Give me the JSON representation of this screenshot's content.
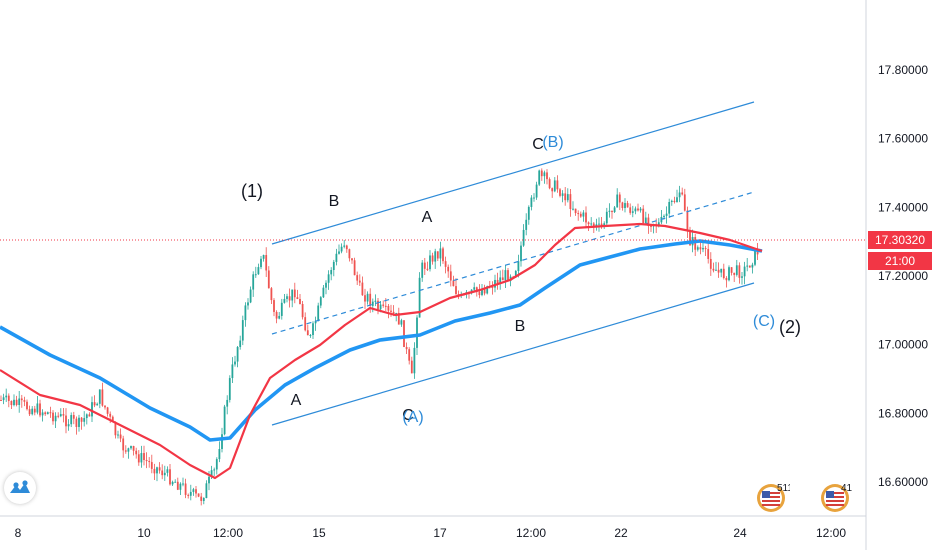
{
  "chart_data": {
    "type": "candlestick",
    "price_axis": {
      "ticks": [
        "17.80000",
        "17.60000",
        "17.40000",
        "17.20000",
        "17.00000",
        "16.80000",
        "16.60000"
      ],
      "tick_values": [
        17.8,
        17.6,
        17.4,
        17.2,
        17.0,
        16.8,
        16.6
      ],
      "ylim": [
        16.5,
        17.98
      ]
    },
    "time_axis": {
      "ticks": [
        "8",
        "10",
        "12:00",
        "15",
        "17",
        "12:00",
        "22",
        "24",
        "12:00"
      ]
    },
    "current_price": {
      "value": 17.3032,
      "label": "17.30320",
      "countdown": "21:00",
      "color": "#f23645"
    },
    "moving_averages": [
      {
        "color": "#f23645",
        "role": "fast"
      },
      {
        "color": "#2196f3",
        "role": "slow"
      }
    ],
    "candle_colors": {
      "up": "#26a69a",
      "down": "#ef5350"
    },
    "candles": [],
    "wave_labels": [
      {
        "text": "(1)",
        "style": "paren"
      },
      {
        "text": "B",
        "style": "black"
      },
      {
        "text": "A",
        "style": "black"
      },
      {
        "text": "C",
        "style": "black"
      },
      {
        "text": "(B)",
        "style": "blue"
      },
      {
        "text": "A",
        "style": "black"
      },
      {
        "text": "C",
        "style": "black"
      },
      {
        "text": "(A)",
        "style": "blue"
      },
      {
        "text": "B",
        "style": "black"
      },
      {
        "text": "(C)",
        "style": "blue"
      },
      {
        "text": "(2)",
        "style": "paren"
      }
    ],
    "event_badges": [
      "511",
      "41"
    ]
  }
}
